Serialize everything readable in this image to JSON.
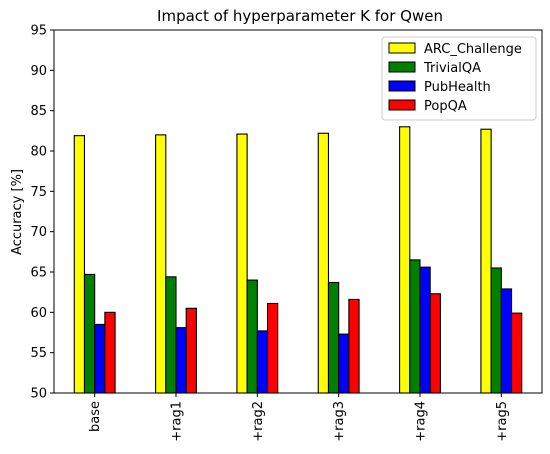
{
  "chart_data": {
    "type": "bar",
    "title": "Impact of hyperparameter K for Qwen",
    "xlabel": "",
    "ylabel": "Accuracy [%]",
    "ylim": [
      50,
      95
    ],
    "yticks": [
      50,
      55,
      60,
      65,
      70,
      75,
      80,
      85,
      90,
      95
    ],
    "categories": [
      "base",
      "+rag1",
      "+rag2",
      "+rag3",
      "+rag4",
      "+rag5"
    ],
    "legend_position": "top-right",
    "grid": false,
    "series": [
      {
        "name": "ARC_Challenge",
        "color": "#ffff00",
        "values": [
          81.9,
          82.0,
          82.1,
          82.2,
          83.0,
          82.7
        ]
      },
      {
        "name": "TrivialQA",
        "color": "#008000",
        "values": [
          64.7,
          64.4,
          64.0,
          63.7,
          66.5,
          65.5
        ]
      },
      {
        "name": "PubHealth",
        "color": "#0000ff",
        "values": [
          58.5,
          58.1,
          57.7,
          57.3,
          65.6,
          62.9
        ]
      },
      {
        "name": "PopQA",
        "color": "#ff0000",
        "values": [
          60.0,
          60.5,
          61.1,
          61.6,
          62.3,
          59.9
        ]
      }
    ]
  }
}
